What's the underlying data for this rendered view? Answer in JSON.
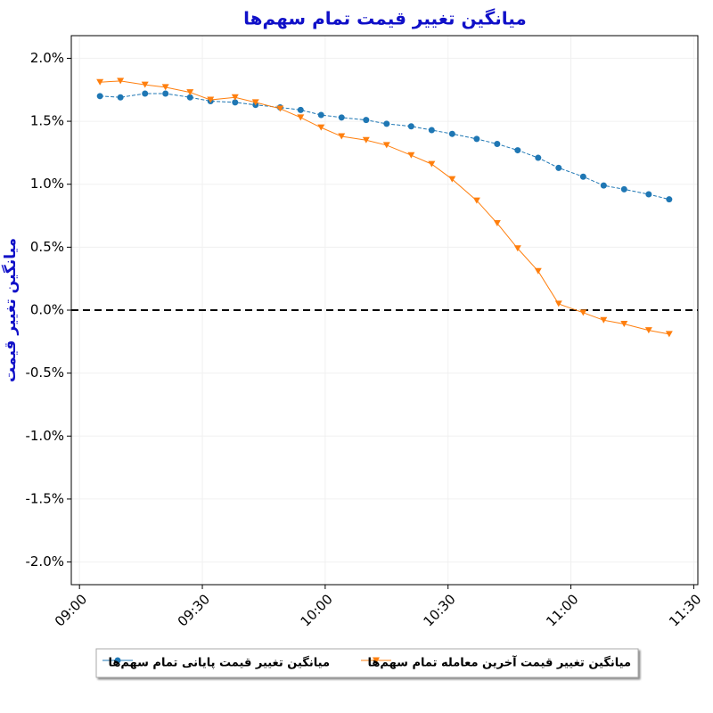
{
  "chart_data": {
    "type": "line",
    "title": "میانگین تغییر قیمت تمام سهم‌ها",
    "y_label": "میانگین تغییر قیمت",
    "x": [
      "09:05",
      "09:10",
      "09:16",
      "09:21",
      "09:27",
      "09:32",
      "09:38",
      "09:43",
      "09:49",
      "09:54",
      "09:59",
      "10:04",
      "10:10",
      "10:15",
      "10:21",
      "10:26",
      "10:31",
      "10:37",
      "10:42",
      "10:47",
      "10:52",
      "10:57",
      "11:03",
      "11:08",
      "11:13",
      "11:19",
      "11:24"
    ],
    "series": [
      {
        "name": "میانگین تغییر قیمت پایانی تمام سهم‌ها",
        "color": "#1f77b4",
        "marker": "circle",
        "values": [
          1.7,
          1.69,
          1.72,
          1.72,
          1.69,
          1.66,
          1.65,
          1.63,
          1.61,
          1.59,
          1.55,
          1.53,
          1.51,
          1.48,
          1.46,
          1.43,
          1.4,
          1.36,
          1.32,
          1.27,
          1.21,
          1.13,
          1.06,
          0.99,
          0.96,
          0.92,
          0.88
        ]
      },
      {
        "name": "میانگین تغییر قیمت آخرین معامله تمام سهم‌ها",
        "color": "#ff7f0e",
        "marker": "triangle-down",
        "values": [
          1.81,
          1.82,
          1.79,
          1.77,
          1.73,
          1.67,
          1.69,
          1.65,
          1.6,
          1.53,
          1.45,
          1.38,
          1.35,
          1.31,
          1.23,
          1.16,
          1.04,
          0.87,
          0.69,
          0.49,
          0.31,
          0.05,
          -0.02,
          -0.08,
          -0.11,
          -0.16,
          -0.19
        ]
      }
    ],
    "xlim": [
      "08:58",
      "11:31"
    ],
    "xticks": [
      "09:00",
      "09:30",
      "10:00",
      "10:30",
      "11:00",
      "11:30"
    ],
    "ylim": [
      -2.18,
      2.18
    ],
    "yticks": [
      {
        "value": -2,
        "label": "-2.0%"
      },
      {
        "value": -1.5,
        "label": "-1.5%"
      },
      {
        "value": -1,
        "label": "-1.0%"
      },
      {
        "value": -0.5,
        "label": "-0.5%"
      },
      {
        "value": 0,
        "label": "0.0%"
      },
      {
        "value": 0.5,
        "label": "0.5%"
      },
      {
        "value": 1,
        "label": "1.0%"
      },
      {
        "value": 1.5,
        "label": "1.5%"
      },
      {
        "value": 2,
        "label": "2.0%"
      }
    ],
    "hline": 0,
    "grid": true,
    "legend": "bottom"
  }
}
